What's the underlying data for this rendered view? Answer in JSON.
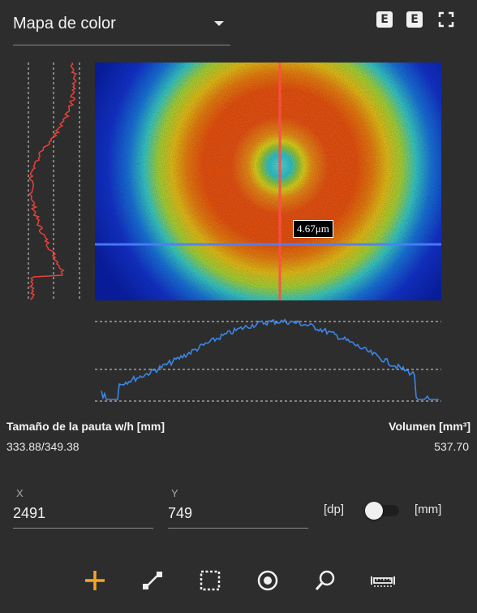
{
  "header": {
    "view_select_label": "Mapa de color",
    "badge_1": "E",
    "badge_2": "E"
  },
  "image": {
    "measurement_label": "4.67μm"
  },
  "stats": {
    "pattern_size_label": "Tamaño de la pauta w/h [mm]",
    "pattern_size_value": "333.88/349.38",
    "volume_label": "Volumen [mm³]",
    "volume_value": "537.70"
  },
  "coords": {
    "x_label": "X",
    "x_value": "2491",
    "y_label": "Y",
    "y_value": "749",
    "unit_left": "[dp]",
    "unit_right": "[mm]",
    "unit_toggle_on": false
  },
  "colors": {
    "accent": "#f5a623",
    "background": "#2d2d2d",
    "profile_vertical": "#e8413a",
    "profile_horizontal": "#3a86e8",
    "crosshair_vertical": "#ff5050",
    "crosshair_horizontal": "#5a8cff"
  },
  "toolbar": {
    "tools": [
      "crosshair-tool",
      "line-tool",
      "rectangle-select-tool",
      "circle-tool",
      "zoom-tool",
      "ruler-tool"
    ],
    "active_tool": "crosshair-tool"
  }
}
